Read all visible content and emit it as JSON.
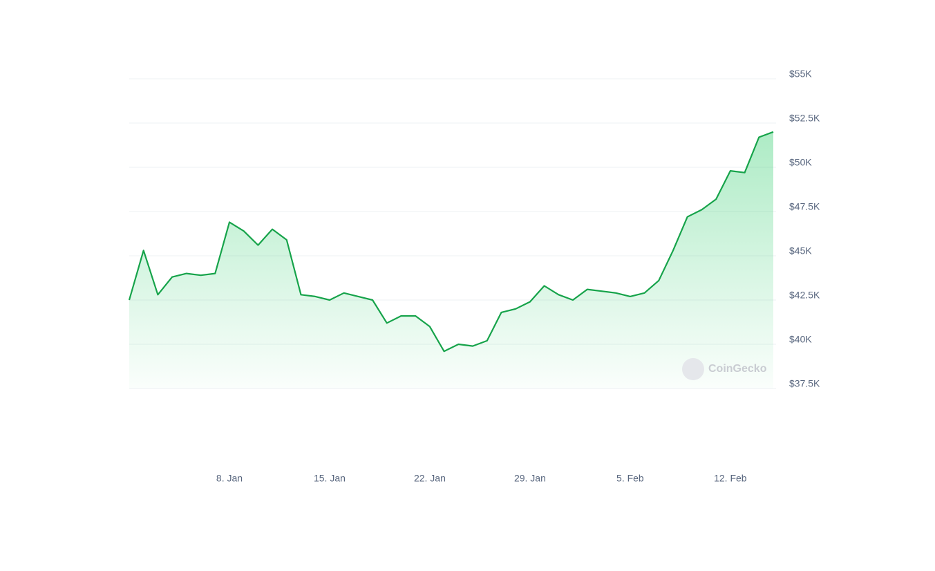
{
  "chart_data": {
    "type": "line",
    "x": [
      "1. Jan",
      "2. Jan",
      "3. Jan",
      "4. Jan",
      "5. Jan",
      "6. Jan",
      "7. Jan",
      "8. Jan",
      "9. Jan",
      "10. Jan",
      "11. Jan",
      "12. Jan",
      "13. Jan",
      "14. Jan",
      "15. Jan",
      "16. Jan",
      "17. Jan",
      "18. Jan",
      "19. Jan",
      "20. Jan",
      "21. Jan",
      "22. Jan",
      "23. Jan",
      "24. Jan",
      "25. Jan",
      "26. Jan",
      "27. Jan",
      "28. Jan",
      "29. Jan",
      "30. Jan",
      "31. Jan",
      "1. Feb",
      "2. Feb",
      "3. Feb",
      "4. Feb",
      "5. Feb",
      "6. Feb",
      "7. Feb",
      "8. Feb",
      "9. Feb",
      "10. Feb",
      "11. Feb",
      "12. Feb",
      "13. Feb",
      "14. Feb",
      "15. Feb"
    ],
    "values": [
      42500,
      45300,
      42800,
      43800,
      44000,
      43900,
      44000,
      46900,
      46400,
      45600,
      46500,
      45900,
      42800,
      42700,
      42500,
      42900,
      42700,
      42500,
      41200,
      41600,
      41600,
      41000,
      39600,
      40000,
      39900,
      40200,
      41800,
      42000,
      42400,
      43300,
      42800,
      42500,
      43100,
      43000,
      42900,
      42700,
      42900,
      43600,
      45300,
      47200,
      47600,
      48200,
      49800,
      49700,
      51700,
      52000
    ],
    "color": "#16a34a",
    "xticks": [
      "8. Jan",
      "15. Jan",
      "22. Jan",
      "29. Jan",
      "5. Feb",
      "12. Feb"
    ],
    "ylim": [
      37500,
      55000
    ],
    "yticks": [
      {
        "value": 37500,
        "label": "$37.5K"
      },
      {
        "value": 40000,
        "label": "$40K"
      },
      {
        "value": 42500,
        "label": "$42.5K"
      },
      {
        "value": 45000,
        "label": "$45K"
      },
      {
        "value": 47500,
        "label": "$47.5K"
      },
      {
        "value": 50000,
        "label": "$50K"
      },
      {
        "value": 52500,
        "label": "$52.5K"
      },
      {
        "value": 55000,
        "label": "$55K"
      }
    ],
    "grid": true,
    "watermark": "CoinGecko"
  }
}
